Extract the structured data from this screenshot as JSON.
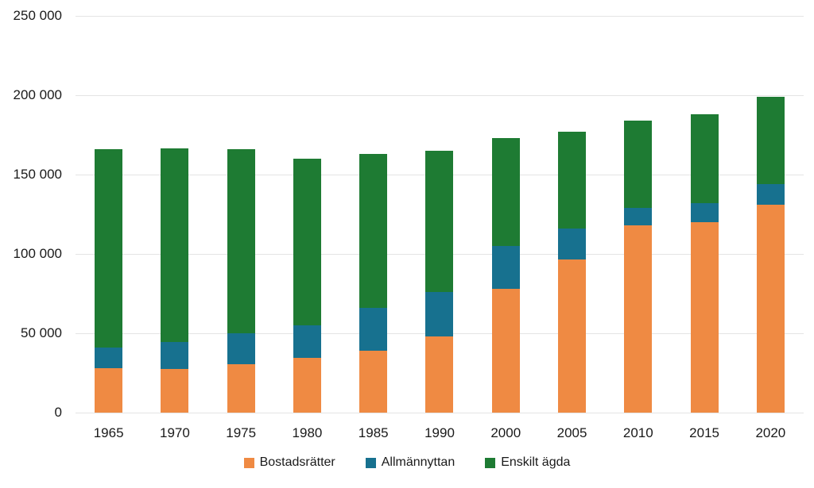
{
  "chart_data": {
    "type": "bar",
    "stacked": true,
    "title": "",
    "xlabel": "",
    "ylabel": "",
    "categories": [
      "1965",
      "1970",
      "1975",
      "1980",
      "1985",
      "1990",
      "2000",
      "2005",
      "2010",
      "2015",
      "2020"
    ],
    "series": [
      {
        "name": "Bostadsrätter",
        "color": "#ef8a43",
        "values": [
          28000,
          27500,
          30500,
          34500,
          39000,
          48000,
          78000,
          96500,
          118000,
          120000,
          131000
        ]
      },
      {
        "name": "Allmännyttan",
        "color": "#17718f",
        "values": [
          13000,
          17000,
          19500,
          20500,
          27000,
          28000,
          27000,
          19500,
          11000,
          12000,
          13000
        ]
      },
      {
        "name": "Enskilt ägda",
        "color": "#1e7b33",
        "values": [
          125000,
          122000,
          116000,
          105000,
          97000,
          89000,
          68000,
          61000,
          55000,
          56000,
          55000
        ]
      }
    ],
    "totals": [
      166000,
      166500,
      166000,
      160000,
      163000,
      165000,
      173000,
      177000,
      184000,
      188000,
      199000
    ],
    "ylim": [
      0,
      250000
    ],
    "ytick_interval": 50000,
    "ytick_labels": [
      "0",
      "50 000",
      "100 000",
      "150 000",
      "200 000",
      "250 000"
    ],
    "grid": true,
    "gridline_color": "#e4e4e4",
    "legend_position": "bottom",
    "legend_entries": [
      "Bostadsrätter",
      "Allmännyttan",
      "Enskilt ägda"
    ]
  }
}
